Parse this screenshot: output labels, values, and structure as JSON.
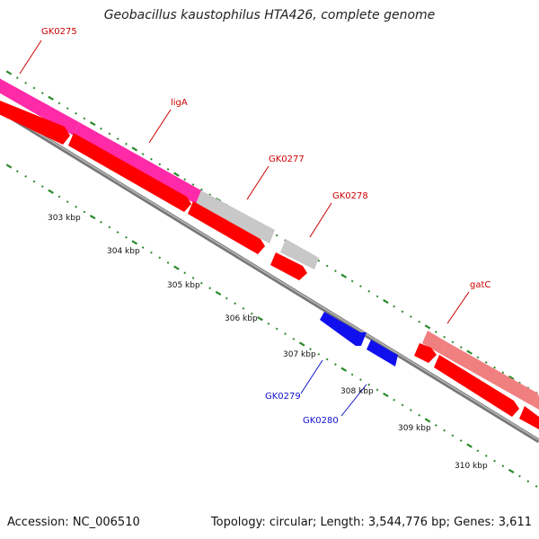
{
  "title": "Geobacillus kaustophilus HTA426, complete genome",
  "footer": {
    "accession": "Accession: NC_006510",
    "summary": "Topology: circular; Length: 3,544,776 bp; Genes: 3,611"
  },
  "colors": {
    "backbone": "#888888",
    "tick": "#2a8a2a",
    "forward_cds": "#ff0000",
    "reverse_cds": "#1010ee",
    "label_forward": "#cc0000",
    "label_reverse": "#1010cc",
    "gene_pink": "#ff2aa8",
    "gene_grey": "#c8c8c8",
    "gene_salmon": "#f08080"
  },
  "genes": [
    {
      "label": "GK0275",
      "strand": "forward"
    },
    {
      "label": "ligA",
      "strand": "forward"
    },
    {
      "label": "GK0277",
      "strand": "forward"
    },
    {
      "label": "GK0278",
      "strand": "forward"
    },
    {
      "label": "GK0279",
      "strand": "reverse"
    },
    {
      "label": "GK0280",
      "strand": "reverse"
    },
    {
      "label": "gatC",
      "strand": "forward"
    }
  ],
  "scale_labels": [
    "303 kbp",
    "304 kbp",
    "305 kbp",
    "306 kbp",
    "307 kbp",
    "308 kbp",
    "309 kbp",
    "310 kbp"
  ]
}
